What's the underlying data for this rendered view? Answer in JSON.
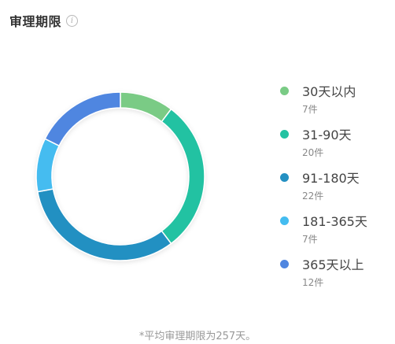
{
  "header": {
    "title": "审理期限",
    "info_icon": "info-icon"
  },
  "chart_data": {
    "type": "pie",
    "categories": [
      "30天以内",
      "31-90天",
      "91-180天",
      "181-365天",
      "365天以上"
    ],
    "values": [
      7,
      20,
      22,
      7,
      12
    ],
    "value_labels": [
      "7件",
      "20件",
      "22件",
      "7件",
      "12件"
    ],
    "colors": [
      "#7acb85",
      "#23c2a2",
      "#2490c2",
      "#44bcf0",
      "#4f86e0"
    ],
    "legend": "right",
    "style": "donut"
  },
  "footnote": "*平均审理期限为257天。"
}
